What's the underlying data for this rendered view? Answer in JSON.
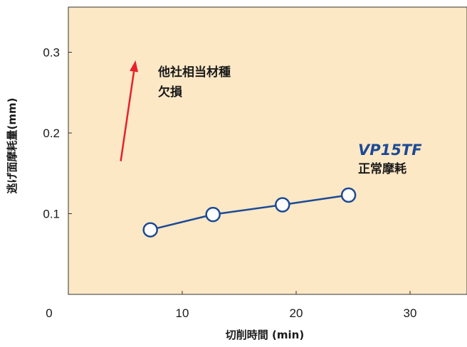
{
  "chart_data": {
    "type": "line",
    "title": "",
    "xlabel": "切削時間 (min)",
    "ylabel": "逃げ面摩耗量(mm)",
    "xlim": [
      0,
      35
    ],
    "ylim": [
      0,
      0.35
    ],
    "x_ticks": [
      {
        "value": 0,
        "label": "0"
      },
      {
        "value": 10,
        "label": "10"
      },
      {
        "value": 20,
        "label": "20"
      },
      {
        "value": 30,
        "label": "30"
      }
    ],
    "y_ticks": [
      {
        "value": 0.1,
        "label": "0.1"
      },
      {
        "value": 0.2,
        "label": "0.2"
      },
      {
        "value": 0.3,
        "label": "0.3"
      }
    ],
    "grid": false,
    "series": [
      {
        "name": "VP15TF",
        "points": [
          {
            "x": 7.2,
            "y": 0.08
          },
          {
            "x": 12.7,
            "y": 0.099
          },
          {
            "x": 18.8,
            "y": 0.111
          },
          {
            "x": 24.6,
            "y": 0.123
          }
        ],
        "color": "#1c4a94"
      }
    ],
    "annotations": {
      "competitor_line1": "他社相当材種",
      "competitor_line2": "欠損",
      "brand_name": "VP15TF",
      "brand_note": "正常摩耗"
    },
    "arrow": {
      "from": {
        "x": 4.6,
        "y": 0.165
      },
      "to": {
        "x": 5.9,
        "y": 0.29
      }
    },
    "colors": {
      "plot_background": "#fde8c6",
      "line": "#1c4a94",
      "marker_fill": "#ffffff",
      "arrow": "#e8202a",
      "brand": "#1c4a94"
    }
  }
}
